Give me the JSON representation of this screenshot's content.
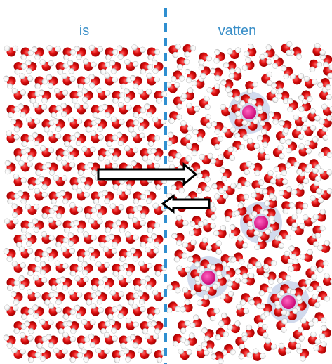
{
  "labels": {
    "left": "is",
    "right": "vatten"
  }
}
